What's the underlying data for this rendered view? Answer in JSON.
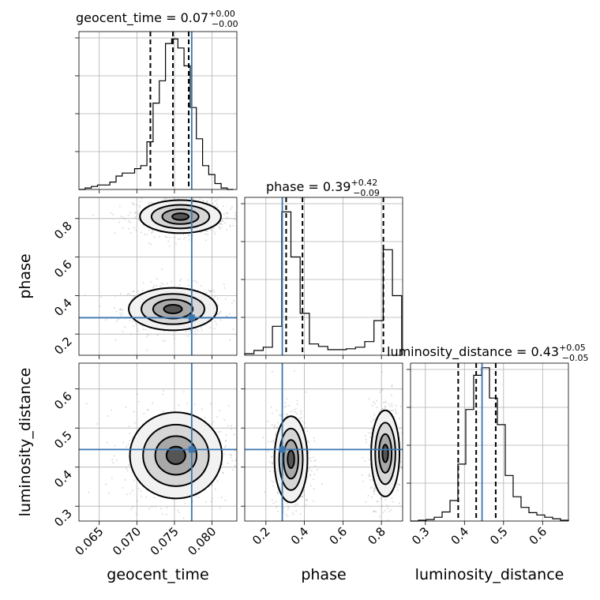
{
  "chart_data": {
    "type": "corner",
    "parameters": [
      {
        "name": "geocent_time",
        "title": "geocent_time = ",
        "median": "0.07",
        "plus": "+0.00",
        "minus": "−0.00",
        "range": [
          0.0623,
          0.0833
        ],
        "ticks": [
          {
            "value": 0.065,
            "label": "0.065"
          },
          {
            "value": 0.07,
            "label": "0.070"
          },
          {
            "value": 0.075,
            "label": "0.075"
          },
          {
            "value": 0.08,
            "label": "0.080"
          }
        ],
        "truth": 0.0773,
        "quantiles": [
          0.0718,
          0.0748,
          0.0769
        ],
        "hist_edges": [
          0.0623,
          0.08285
        ],
        "hist_counts": [
          0,
          1,
          2,
          3,
          3,
          5,
          9,
          11,
          11,
          14,
          16,
          32,
          58,
          73,
          98,
          101,
          95,
          83,
          55,
          34,
          16,
          10,
          4,
          1,
          0
        ],
        "hist_max": 106
      },
      {
        "name": "phase",
        "title": "phase = ",
        "median": "0.39",
        "plus": "+0.42",
        "minus": "−0.09",
        "range": [
          0.09,
          0.91
        ],
        "ticks": [
          {
            "value": 0.2,
            "label": "0.2"
          },
          {
            "value": 0.4,
            "label": "0.4"
          },
          {
            "value": 0.6,
            "label": "0.6"
          },
          {
            "value": 0.8,
            "label": "0.8"
          }
        ],
        "truth": 0.285,
        "quantiles": [
          0.305,
          0.39,
          0.81
        ],
        "hist_edges": [
          0.09,
          0.905
        ],
        "hist_counts": [
          2,
          6,
          10,
          36,
          178,
          122,
          52,
          14,
          11,
          7,
          7,
          8,
          10,
          17,
          43,
          131,
          74
        ],
        "hist_max": 196
      },
      {
        "name": "luminosity_distance",
        "title": "luminosity_distance = ",
        "median": "0.43",
        "plus": "+0.05",
        "minus": "−0.05",
        "range": [
          0.262,
          0.666
        ],
        "ticks": [
          {
            "value": 0.3,
            "label": "0.3"
          },
          {
            "value": 0.4,
            "label": "0.4"
          },
          {
            "value": 0.5,
            "label": "0.5"
          },
          {
            "value": 0.6,
            "label": "0.6"
          }
        ],
        "truth": 0.445,
        "quantiles": [
          0.384,
          0.43,
          0.48
        ],
        "hist_edges": [
          0.262,
          0.666
        ],
        "hist_counts": [
          0,
          1,
          2,
          5,
          12,
          27,
          75,
          147,
          192,
          202,
          162,
          127,
          60,
          32,
          18,
          11,
          8,
          5,
          3,
          1
        ],
        "hist_max": 208
      }
    ],
    "pairs": [
      {
        "x": "geocent_time",
        "y": "phase",
        "clusters": [
          {
            "cx": 0.0748,
            "cy": 0.33,
            "sx": 0.0024,
            "sy": 0.045
          },
          {
            "cx": 0.0758,
            "cy": 0.81,
            "sx": 0.0022,
            "sy": 0.035
          }
        ]
      },
      {
        "x": "geocent_time",
        "y": "luminosity_distance",
        "clusters": [
          {
            "cx": 0.0752,
            "cy": 0.43,
            "sx": 0.0025,
            "sy": 0.045
          }
        ]
      },
      {
        "x": "phase",
        "y": "luminosity_distance",
        "clusters": [
          {
            "cx": 0.33,
            "cy": 0.42,
            "sx": 0.035,
            "sy": 0.045
          },
          {
            "cx": 0.82,
            "cy": 0.435,
            "sx": 0.03,
            "sy": 0.045
          }
        ]
      }
    ],
    "truth_color": "#3b76af",
    "contour_color": "#000000",
    "sample_color": "#9a9a9a",
    "grid": true
  }
}
